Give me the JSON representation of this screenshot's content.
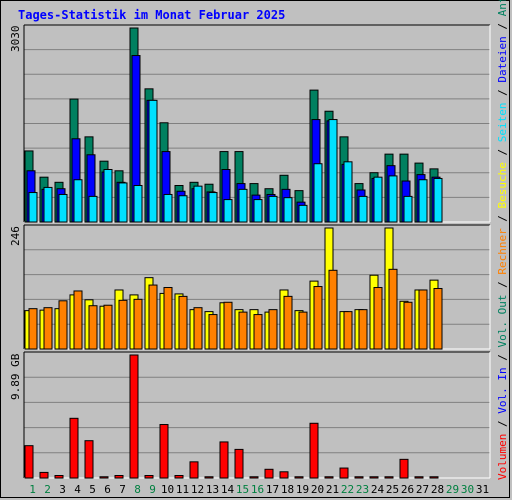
{
  "title": "Tages-Statistik im Monat Februar 2025",
  "colors": {
    "anfragen": "#008060",
    "dateien": "#0000ff",
    "seiten": "#00e0ff",
    "besuche": "#ffff00",
    "rechner": "#ff8000",
    "volumen": "#ff0000",
    "title": "#0000ff",
    "weekend_day": "#008040",
    "weekday": "#000000"
  },
  "legend": [
    {
      "label": "Volumen",
      "color": "#ff0000"
    },
    {
      "label": "Vol. In",
      "color": "#0000ff"
    },
    {
      "label": "Vol. Out",
      "color": "#008060"
    },
    {
      "label": "Rechner",
      "color": "#ff8000"
    },
    {
      "label": "Besuche",
      "color": "#ffff00"
    },
    {
      "label": "Seiten",
      "color": "#00e0ff"
    },
    {
      "label": "Dateien",
      "color": "#0000ff"
    },
    {
      "label": "Anfragen",
      "color": "#008060"
    }
  ],
  "chart_data": [
    {
      "type": "bar",
      "title": "Tages-Statistik im Monat Februar 2025",
      "panel": "requests",
      "ylabel": "3030",
      "ylim": [
        0,
        3030
      ],
      "categories": [
        "1",
        "2",
        "3",
        "4",
        "5",
        "6",
        "7",
        "8",
        "9",
        "10",
        "11",
        "12",
        "13",
        "14",
        "15",
        "16",
        "17",
        "18",
        "19",
        "20",
        "21",
        "22",
        "23",
        "24",
        "25",
        "26",
        "27",
        "28",
        "29",
        "30",
        "31"
      ],
      "series": [
        {
          "name": "Anfragen",
          "color": "#008060",
          "values": [
            1110,
            700,
            620,
            1920,
            1330,
            950,
            800,
            3030,
            2080,
            1550,
            570,
            620,
            590,
            1100,
            1100,
            600,
            520,
            730,
            490,
            2060,
            1730,
            1330,
            600,
            770,
            1060,
            1060,
            920,
            830,
            0,
            0,
            0
          ]
        },
        {
          "name": "Dateien",
          "color": "#0000ff",
          "values": [
            800,
            510,
            520,
            1300,
            1050,
            780,
            620,
            2600,
            1900,
            1100,
            480,
            520,
            470,
            820,
            600,
            420,
            430,
            510,
            310,
            1600,
            1580,
            900,
            500,
            680,
            880,
            640,
            740,
            700,
            0,
            0,
            0
          ]
        },
        {
          "name": "Seiten",
          "color": "#00e0ff",
          "values": [
            460,
            540,
            430,
            660,
            400,
            820,
            610,
            570,
            1900,
            430,
            410,
            560,
            460,
            350,
            510,
            350,
            400,
            380,
            260,
            910,
            1600,
            940,
            400,
            700,
            720,
            400,
            660,
            680,
            0,
            0,
            0
          ]
        }
      ],
      "weekend_days": [
        1,
        2,
        8,
        9,
        15,
        16,
        22,
        23,
        29,
        30
      ]
    },
    {
      "type": "bar",
      "panel": "visits",
      "ylabel": "246",
      "ylim": [
        0,
        246
      ],
      "categories": [
        "1",
        "2",
        "3",
        "4",
        "5",
        "6",
        "7",
        "8",
        "9",
        "10",
        "11",
        "12",
        "13",
        "14",
        "15",
        "16",
        "17",
        "18",
        "19",
        "20",
        "21",
        "22",
        "23",
        "24",
        "25",
        "26",
        "27",
        "28",
        "29",
        "30",
        "31"
      ],
      "series": [
        {
          "name": "Besuche",
          "color": "#ffff00",
          "values": [
            78,
            79,
            82,
            110,
            100,
            87,
            120,
            110,
            145,
            113,
            112,
            80,
            76,
            94,
            80,
            80,
            75,
            120,
            78,
            138,
            246,
            76,
            80,
            150,
            246,
            97,
            120,
            140,
            0,
            0,
            0
          ]
        },
        {
          "name": "Rechner",
          "color": "#ff8000",
          "values": [
            82,
            84,
            98,
            118,
            88,
            89,
            99,
            101,
            130,
            125,
            107,
            84,
            70,
            95,
            75,
            70,
            80,
            107,
            75,
            127,
            160,
            76,
            80,
            125,
            162,
            95,
            120,
            123,
            0,
            0,
            0
          ]
        }
      ]
    },
    {
      "type": "bar",
      "panel": "volume",
      "ylabel": "9.89 GB",
      "ylim": [
        0,
        9.89
      ],
      "categories": [
        "1",
        "2",
        "3",
        "4",
        "5",
        "6",
        "7",
        "8",
        "9",
        "10",
        "11",
        "12",
        "13",
        "14",
        "15",
        "16",
        "17",
        "18",
        "19",
        "20",
        "21",
        "22",
        "23",
        "24",
        "25",
        "26",
        "27",
        "28",
        "29",
        "30",
        "31"
      ],
      "series": [
        {
          "name": "Volumen",
          "color": "#ff0000",
          "values": [
            2.6,
            0.45,
            0.2,
            4.8,
            3.0,
            0.1,
            0.2,
            9.89,
            0.2,
            4.3,
            0.2,
            1.3,
            0.1,
            2.9,
            2.3,
            0.1,
            0.7,
            0.5,
            0.1,
            4.4,
            0.1,
            0.8,
            0.1,
            0.1,
            0.1,
            1.5,
            0.1,
            0.1,
            0,
            0,
            0
          ]
        }
      ]
    }
  ]
}
